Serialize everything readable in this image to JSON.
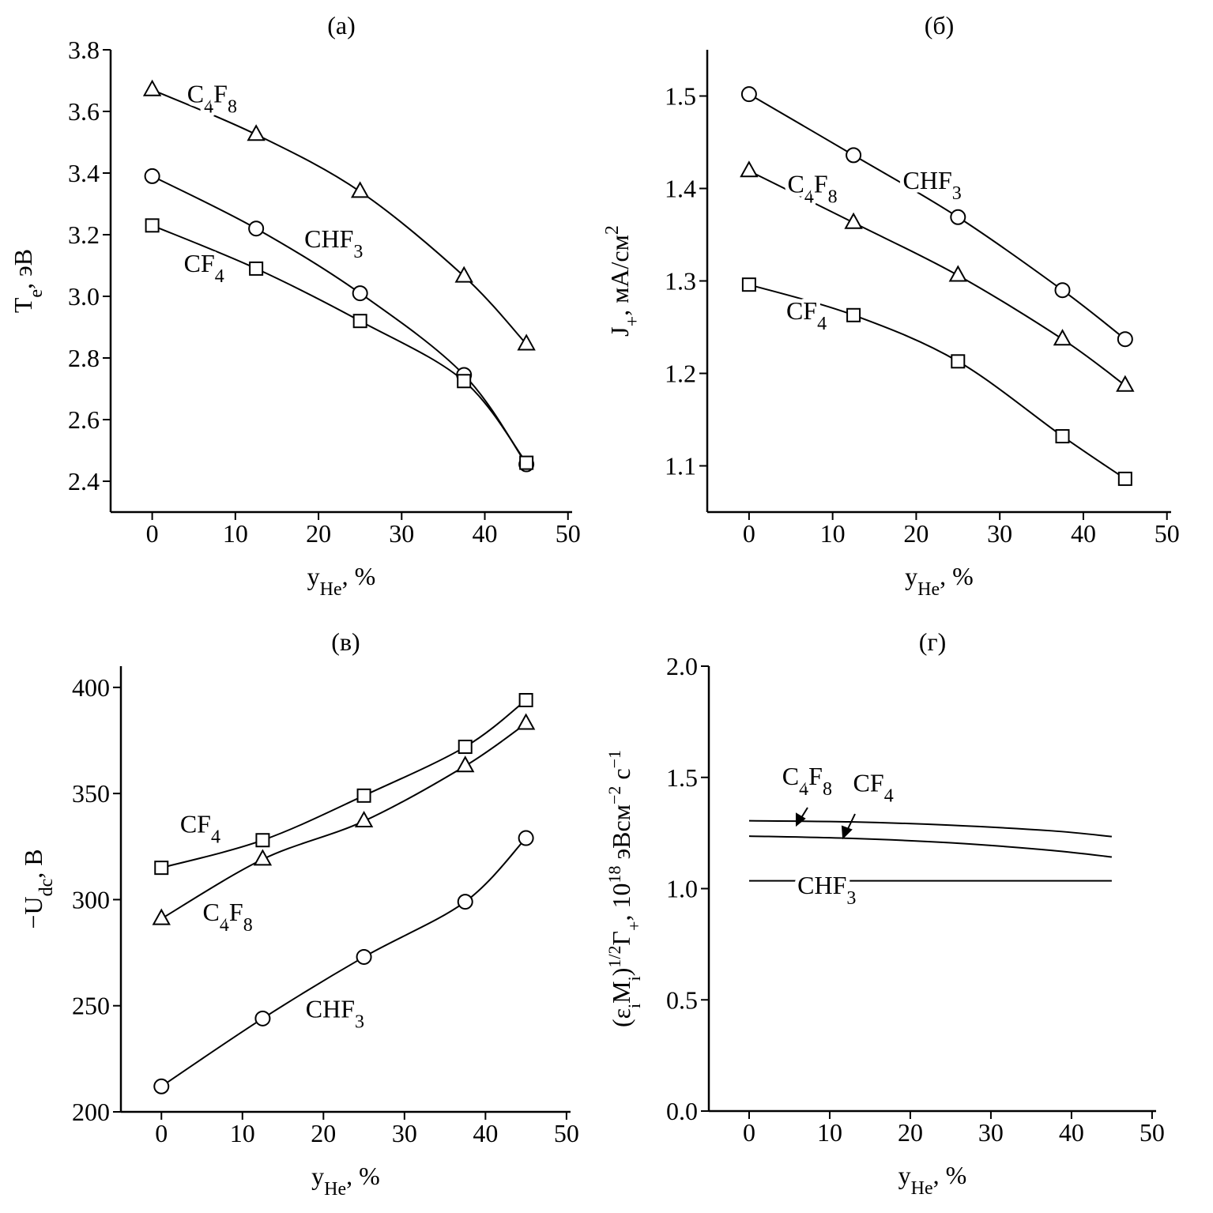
{
  "chart_data": [
    {
      "type": "line",
      "title": "(а)",
      "xlabel": [
        {
          "text": "y"
        },
        {
          "text": "He",
          "sub": true
        },
        {
          "text": ", %"
        }
      ],
      "ylabel": [
        {
          "text": "T"
        },
        {
          "text": "e",
          "sub": true
        },
        {
          "text": ", эВ"
        }
      ],
      "xlim": [
        -5,
        50.5
      ],
      "ylim": [
        2.3,
        3.8
      ],
      "xticks": [
        0,
        10,
        20,
        30,
        40,
        50
      ],
      "yticks": [
        2.4,
        2.6,
        2.8,
        {
          "value": 3,
          "label": "3.0"
        },
        3.2,
        3.4,
        3.6,
        3.8
      ],
      "x": [
        0,
        12.5,
        25,
        37.5,
        45
      ],
      "series": [
        {
          "name": "C4F8",
          "color": "#000000",
          "marker": "triangle",
          "values": [
            3.67,
            3.525,
            3.34,
            3.065,
            2.845
          ]
        },
        {
          "name": "CHF3",
          "color": "#000000",
          "marker": "circle",
          "values": [
            3.39,
            3.22,
            3.01,
            2.745,
            2.455
          ]
        },
        {
          "name": "CF4",
          "color": "#000000",
          "marker": "square",
          "values": [
            3.23,
            3.09,
            2.92,
            2.725,
            2.46
          ]
        }
      ]
    },
    {
      "type": "line",
      "title": "(б)",
      "xlabel": [
        {
          "text": "y"
        },
        {
          "text": "He",
          "sub": true
        },
        {
          "text": ", %"
        }
      ],
      "ylabel": [
        {
          "text": "J"
        },
        {
          "text": "+",
          "sub": true
        },
        {
          "text": ", мА/см"
        },
        {
          "text": "2",
          "sup": true
        }
      ],
      "xlim": [
        -5,
        50.5
      ],
      "ylim": [
        1.05,
        1.55
      ],
      "xticks": [
        0,
        10,
        20,
        30,
        40,
        50
      ],
      "yticks": [
        1.1,
        1.2,
        1.3,
        1.4,
        1.5
      ],
      "x": [
        0,
        12.5,
        25,
        37.5,
        45
      ],
      "series": [
        {
          "name": "CHF3",
          "color": "#000000",
          "marker": "circle",
          "values": [
            1.502,
            1.436,
            1.369,
            1.29,
            1.237
          ]
        },
        {
          "name": "C4F8",
          "color": "#000000",
          "marker": "triangle",
          "values": [
            1.419,
            1.363,
            1.306,
            1.237,
            1.187
          ]
        },
        {
          "name": "CF4",
          "color": "#000000",
          "marker": "square",
          "values": [
            1.296,
            1.263,
            1.213,
            1.132,
            1.086
          ]
        }
      ]
    },
    {
      "type": "line",
      "title": "(в)",
      "xlabel": [
        {
          "text": "y"
        },
        {
          "text": "He",
          "sub": true
        },
        {
          "text": ", %"
        }
      ],
      "ylabel": [
        {
          "text": "−U"
        },
        {
          "text": "dc",
          "sub": true
        },
        {
          "text": ", В"
        }
      ],
      "xlim": [
        -5,
        50.5
      ],
      "ylim": [
        200,
        410
      ],
      "xticks": [
        0,
        10,
        20,
        30,
        40,
        50
      ],
      "yticks": [
        200,
        250,
        300,
        350,
        400
      ],
      "x": [
        0,
        12.5,
        25,
        37.5,
        45
      ],
      "series": [
        {
          "name": "CF4",
          "color": "#000000",
          "marker": "square",
          "values": [
            315,
            328,
            349,
            372,
            394
          ]
        },
        {
          "name": "C4F8",
          "color": "#000000",
          "marker": "triangle",
          "values": [
            291,
            319,
            337,
            363,
            383
          ]
        },
        {
          "name": "CHF3",
          "color": "#000000",
          "marker": "circle",
          "values": [
            212,
            244,
            273,
            299,
            329
          ]
        }
      ]
    },
    {
      "type": "line",
      "title": "(г)",
      "xlabel": [
        {
          "text": "y"
        },
        {
          "text": "He",
          "sub": true
        },
        {
          "text": ", %"
        }
      ],
      "ylabel": [
        {
          "text": "(ε"
        },
        {
          "text": "i",
          "sub": true
        },
        {
          "text": "M"
        },
        {
          "text": "i",
          "sub": true
        },
        {
          "text": ")"
        },
        {
          "text": "1/2",
          "sup": true
        },
        {
          "text": "Γ"
        },
        {
          "text": "+",
          "sub": true
        },
        {
          "text": ", 10"
        },
        {
          "text": "18",
          "sup": true
        },
        {
          "text": " эВсм"
        },
        {
          "text": "−2",
          "sup": true
        },
        {
          "text": " с"
        },
        {
          "text": "−1",
          "sup": true
        }
      ],
      "xlim": [
        -5,
        50.5
      ],
      "ylim": [
        0,
        2
      ],
      "xticks": [
        0,
        10,
        20,
        30,
        40,
        50
      ],
      "yticks": [
        {
          "value": 0,
          "label": "0.0"
        },
        0.5,
        {
          "value": 1,
          "label": "1.0"
        },
        1.5,
        {
          "value": 2,
          "label": "2.0"
        }
      ],
      "x": [
        0,
        12.5,
        25,
        37.5,
        45
      ],
      "series": [
        {
          "name": "C4F8",
          "color": "#000000",
          "marker": "none",
          "values": [
            1.305,
            1.3,
            1.285,
            1.26,
            1.234
          ]
        },
        {
          "name": "CF4",
          "color": "#000000",
          "marker": "none",
          "values": [
            1.236,
            1.226,
            1.206,
            1.172,
            1.142
          ]
        },
        {
          "name": "CHF3",
          "color": "#000000",
          "marker": "none",
          "values": [
            1.035,
            1.035,
            1.035,
            1.035,
            1.035
          ]
        }
      ]
    }
  ]
}
